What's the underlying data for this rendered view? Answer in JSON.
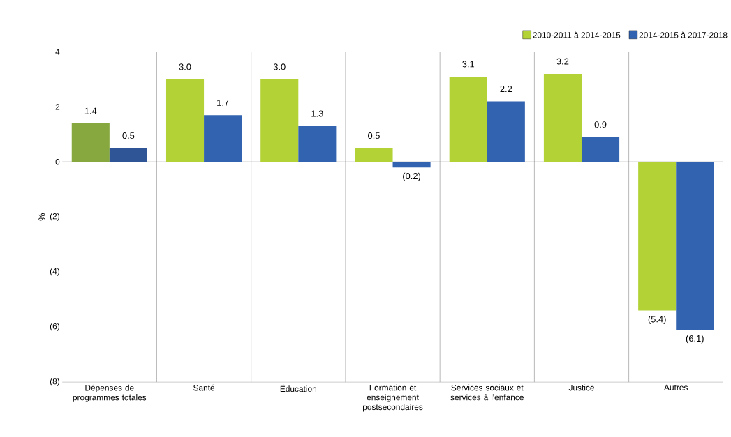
{
  "chart_data": {
    "type": "bar",
    "ylabel": "%",
    "categories": [
      "Dépenses de programmes totales",
      "Santé",
      "Éducation",
      "Formation et enseignement postsecondaires",
      "Services sociaux et services à l'enfance",
      "Justice",
      "Autres"
    ],
    "series": [
      {
        "name": "2010-2011 à 2014-2015",
        "color": "#b2d235",
        "colors": [
          "#86a83e",
          "#b2d235",
          "#b2d235",
          "#b2d235",
          "#b2d235",
          "#b2d235",
          "#b2d235"
        ],
        "values": [
          1.4,
          3.0,
          3.0,
          0.5,
          3.1,
          3.2,
          -5.4
        ],
        "value_labels": [
          "1.4",
          "3.0",
          "3.0",
          "0.5",
          "3.1",
          "3.2",
          "(5.4)"
        ]
      },
      {
        "name": "2014-2015 à 2017-2018",
        "color": "#3263b0",
        "colors": [
          "#2f5597",
          "#3263b0",
          "#3263b0",
          "#3263b0",
          "#3263b0",
          "#3263b0",
          "#3263b0"
        ],
        "values": [
          0.5,
          1.7,
          1.3,
          -0.2,
          2.2,
          0.9,
          -6.1
        ],
        "value_labels": [
          "0.5",
          "1.7",
          "1.3",
          "(0.2)",
          "2.2",
          "0.9",
          "(6.1)"
        ]
      }
    ],
    "ylim": [
      -8,
      4
    ],
    "yticks": [
      {
        "value": -8,
        "label": "(8)"
      },
      {
        "value": -6,
        "label": "(6)"
      },
      {
        "value": -4,
        "label": "(4)"
      },
      {
        "value": -2,
        "label": "(2)"
      },
      0,
      2,
      4
    ],
    "grid": "x",
    "legend": "top right"
  }
}
